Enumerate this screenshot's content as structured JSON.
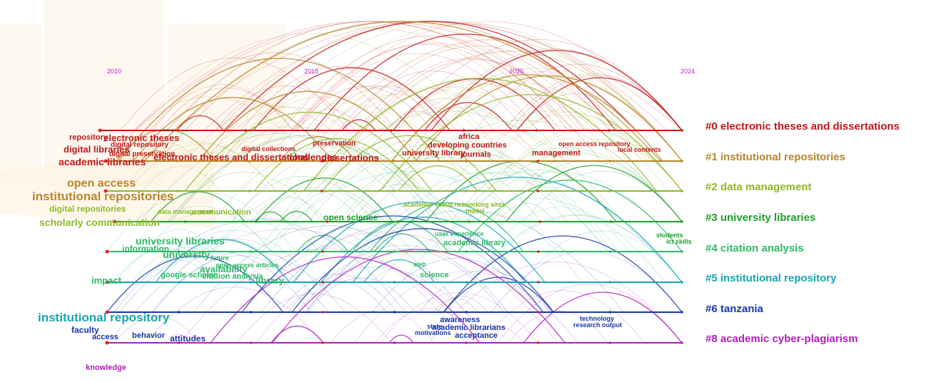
{
  "timeline": {
    "years": [
      "2010",
      "2015",
      "2020",
      "2024"
    ],
    "clusters": [
      {
        "id": "#0",
        "label": "electronic theses and dissertations",
        "color": "#c01818"
      },
      {
        "id": "#1",
        "label": "institutional repositories",
        "color": "#b8862b"
      },
      {
        "id": "#2",
        "label": "data management",
        "color": "#8db82b"
      },
      {
        "id": "#3",
        "label": "university libraries",
        "color": "#1e9e2a"
      },
      {
        "id": "#4",
        "label": "citation analysis",
        "color": "#2fb866"
      },
      {
        "id": "#5",
        "label": "institutional repository",
        "color": "#18a6b0"
      },
      {
        "id": "#6",
        "label": "tanzania",
        "color": "#1838a8"
      },
      {
        "id": "#8",
        "label": "academic cyber-plagiarism",
        "color": "#b020b8"
      }
    ],
    "keywords": [
      {
        "text": "repository",
        "color": "#c01818"
      },
      {
        "text": "electronic theses",
        "color": "#c01818"
      },
      {
        "text": "digital repository",
        "color": "#c01818"
      },
      {
        "text": "digital libraries",
        "color": "#c01818"
      },
      {
        "text": "digital preservation",
        "color": "#c01818"
      },
      {
        "text": "academic libraries",
        "color": "#c01818"
      },
      {
        "text": "electronic theses and dissertations",
        "color": "#c01818"
      },
      {
        "text": "digital collections",
        "color": "#c01818"
      },
      {
        "text": "challenges",
        "color": "#c01818"
      },
      {
        "text": "dissertations",
        "color": "#c01818"
      },
      {
        "text": "preservation",
        "color": "#c01818"
      },
      {
        "text": "africa",
        "color": "#c01818"
      },
      {
        "text": "developing countries",
        "color": "#c01818"
      },
      {
        "text": "university library",
        "color": "#c01818"
      },
      {
        "text": "journals",
        "color": "#c01818"
      },
      {
        "text": "management",
        "color": "#c01818"
      },
      {
        "text": "open access repository",
        "color": "#c01818"
      },
      {
        "text": "local contents",
        "color": "#c01818"
      },
      {
        "text": "open access",
        "color": "#b8862b"
      },
      {
        "text": "institutional repositories",
        "color": "#b8862b"
      },
      {
        "text": "digital repositories",
        "color": "#8db82b"
      },
      {
        "text": "scholarly communication",
        "color": "#8db82b"
      },
      {
        "text": "data management",
        "color": "#8db82b"
      },
      {
        "text": "communication",
        "color": "#8db82b"
      },
      {
        "text": "academic social networking sites",
        "color": "#8db82b"
      },
      {
        "text": "model",
        "color": "#8db82b"
      },
      {
        "text": "open science",
        "color": "#1e9e2a"
      },
      {
        "text": "students",
        "color": "#1e9e2a"
      },
      {
        "text": "ict skills",
        "color": "#1e9e2a"
      },
      {
        "text": "university libraries",
        "color": "#2fb866"
      },
      {
        "text": "information",
        "color": "#2fb866"
      },
      {
        "text": "university",
        "color": "#2fb866"
      },
      {
        "text": "user experience",
        "color": "#2fb866"
      },
      {
        "text": "academic library",
        "color": "#2fb866"
      },
      {
        "text": "future",
        "color": "#2fb866"
      },
      {
        "text": "availability",
        "color": "#2fb866"
      },
      {
        "text": "open access articles",
        "color": "#2fb866"
      },
      {
        "text": "citation analysis",
        "color": "#2fb866"
      },
      {
        "text": "google scholar",
        "color": "#2fb866"
      },
      {
        "text": "library",
        "color": "#2fb866"
      },
      {
        "text": "web",
        "color": "#2fb866"
      },
      {
        "text": "science",
        "color": "#2fb866"
      },
      {
        "text": "impact",
        "color": "#2fb866"
      },
      {
        "text": "institutional repository",
        "color": "#18a6b0"
      },
      {
        "text": "faculty",
        "color": "#1838a8"
      },
      {
        "text": "access",
        "color": "#1838a8"
      },
      {
        "text": "behavior",
        "color": "#1838a8"
      },
      {
        "text": "attitudes",
        "color": "#1838a8"
      },
      {
        "text": "awareness",
        "color": "#1838a8"
      },
      {
        "text": "state",
        "color": "#1838a8"
      },
      {
        "text": "academic librarians",
        "color": "#1838a8"
      },
      {
        "text": "motivations",
        "color": "#1838a8"
      },
      {
        "text": "acceptance",
        "color": "#1838a8"
      },
      {
        "text": "technology",
        "color": "#1838a8"
      },
      {
        "text": "research output",
        "color": "#1838a8"
      },
      {
        "text": "knowledge",
        "color": "#b020b8"
      }
    ]
  }
}
